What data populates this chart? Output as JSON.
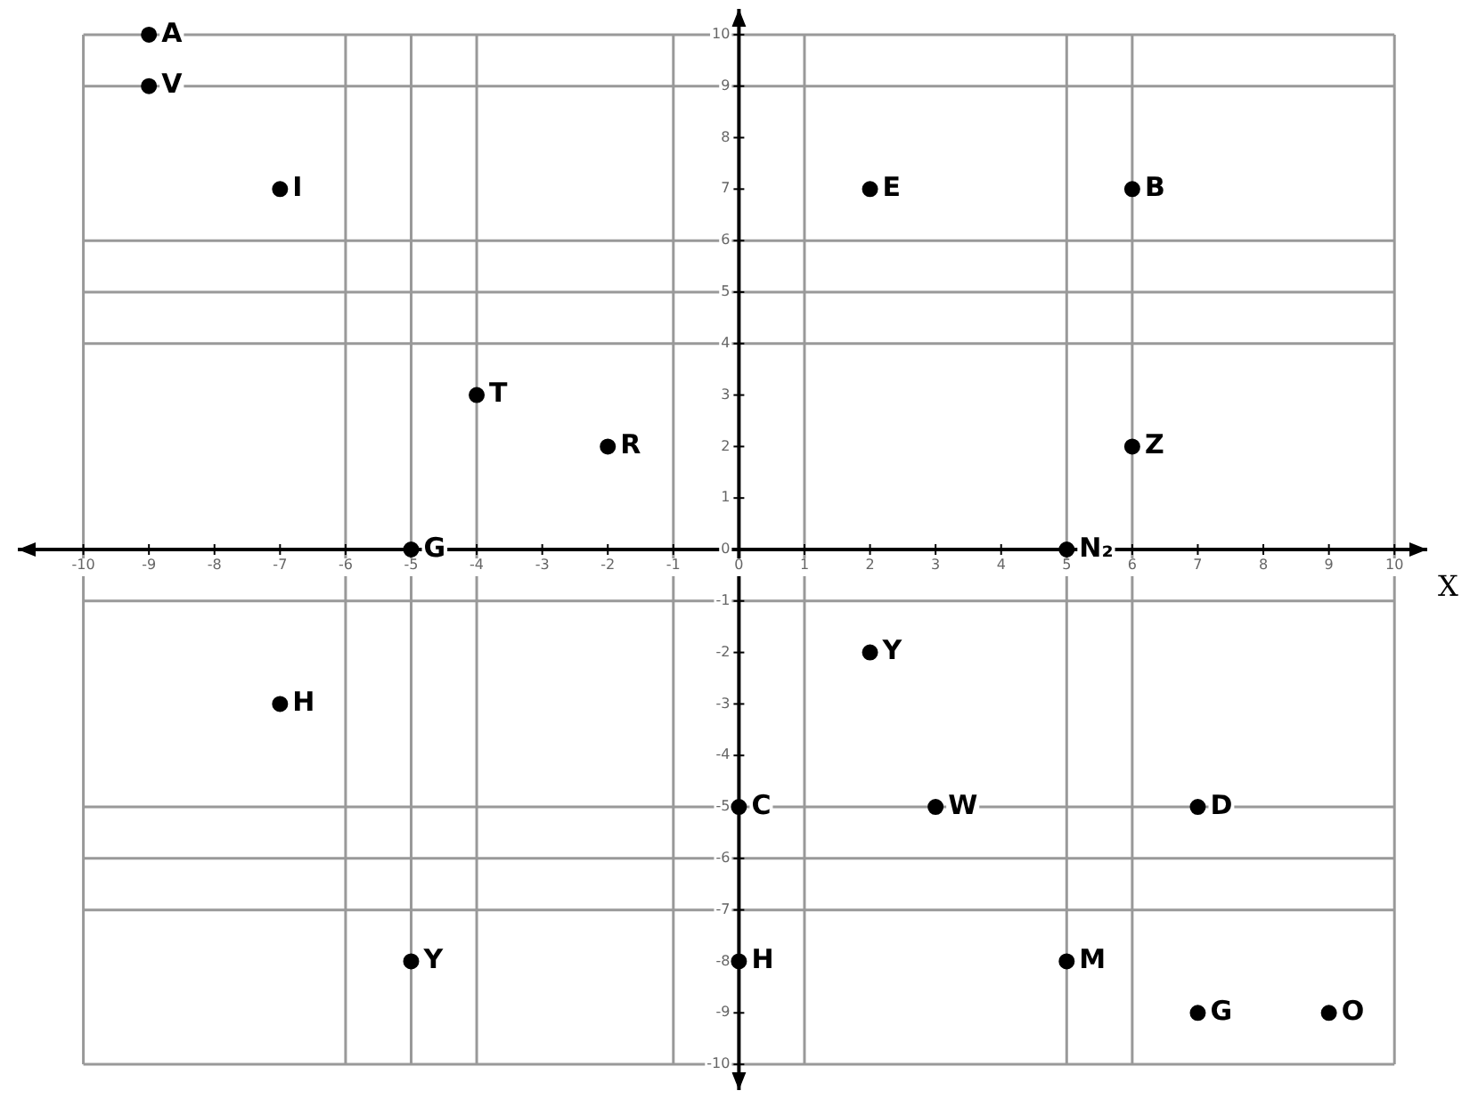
{
  "chart_data": {
    "type": "scatter",
    "xlabel": "X",
    "marker": "circle",
    "grid": false,
    "xlim": [
      -11,
      10.5
    ],
    "ylim": [
      -10.5,
      10.5
    ],
    "xticks": [
      -10,
      -9,
      -8,
      -7,
      -6,
      -5,
      -4,
      -3,
      -2,
      -1,
      0,
      1,
      2,
      3,
      4,
      5,
      6,
      7,
      8,
      9,
      10
    ],
    "yticks": [
      -10,
      -9,
      -8,
      -7,
      -6,
      -5,
      -4,
      -3,
      -2,
      -1,
      0,
      1,
      2,
      3,
      4,
      5,
      6,
      7,
      8,
      9,
      10
    ],
    "series": [
      {
        "color": "#000000",
        "x": [
          -9,
          -9,
          -7,
          2,
          6,
          -4,
          -2,
          6,
          -5,
          5,
          2,
          -7,
          0,
          3,
          7,
          -5,
          0,
          5,
          7,
          9
        ],
        "values": [
          10,
          9,
          7,
          7,
          7,
          3,
          2,
          2,
          0,
          0,
          -2,
          -3,
          -5,
          -5,
          -5,
          -8,
          -8,
          -8,
          -9,
          -9
        ]
      }
    ],
    "annotations": [
      {
        "text": "A",
        "x": -9,
        "y": 10
      },
      {
        "text": "V",
        "x": -9,
        "y": 9
      },
      {
        "text": "I",
        "x": -7,
        "y": 7
      },
      {
        "text": "E",
        "x": 2,
        "y": 7
      },
      {
        "text": "B",
        "x": 6,
        "y": 7
      },
      {
        "text": "T",
        "x": -4,
        "y": 3
      },
      {
        "text": "R",
        "x": -2,
        "y": 2
      },
      {
        "text": "Z",
        "x": 6,
        "y": 2
      },
      {
        "text": "G",
        "x": -5,
        "y": 0
      },
      {
        "text": "N₂",
        "x": 5,
        "y": 0
      },
      {
        "text": "Y",
        "x": 2,
        "y": -2
      },
      {
        "text": "H",
        "x": -7,
        "y": -3
      },
      {
        "text": "C",
        "x": 0,
        "y": -5
      },
      {
        "text": "W",
        "x": 3,
        "y": -5
      },
      {
        "text": "D",
        "x": 7,
        "y": -5
      },
      {
        "text": "Y",
        "x": -5,
        "y": -8
      },
      {
        "text": "H",
        "x": 0,
        "y": -8
      },
      {
        "text": "M",
        "x": 5,
        "y": -8
      },
      {
        "text": "G",
        "x": 7,
        "y": -9
      },
      {
        "text": "O",
        "x": 9,
        "y": -9
      }
    ],
    "ref_lines": [
      {
        "axis": "x",
        "value": -10,
        "color": "#999999"
      },
      {
        "axis": "x",
        "value": -6,
        "color": "#999999"
      },
      {
        "axis": "x",
        "value": -5,
        "color": "#999999"
      },
      {
        "axis": "x",
        "value": -4,
        "color": "#999999"
      },
      {
        "axis": "x",
        "value": -1,
        "color": "#999999"
      },
      {
        "axis": "x",
        "value": 1,
        "color": "#999999"
      },
      {
        "axis": "x",
        "value": 5,
        "color": "#999999"
      },
      {
        "axis": "x",
        "value": 6,
        "color": "#999999"
      },
      {
        "axis": "x",
        "value": 10,
        "color": "#999999"
      },
      {
        "axis": "y",
        "value": 10,
        "color": "#999999"
      },
      {
        "axis": "y",
        "value": 9,
        "color": "#999999"
      },
      {
        "axis": "y",
        "value": 6,
        "color": "#999999"
      },
      {
        "axis": "y",
        "value": 5,
        "color": "#999999"
      },
      {
        "axis": "y",
        "value": 4,
        "color": "#999999"
      },
      {
        "axis": "y",
        "value": -1,
        "color": "#999999"
      },
      {
        "axis": "y",
        "value": -5,
        "color": "#999999"
      },
      {
        "axis": "y",
        "value": -6,
        "color": "#999999"
      },
      {
        "axis": "y",
        "value": -7,
        "color": "#999999"
      },
      {
        "axis": "y",
        "value": -10,
        "color": "#999999"
      }
    ]
  }
}
